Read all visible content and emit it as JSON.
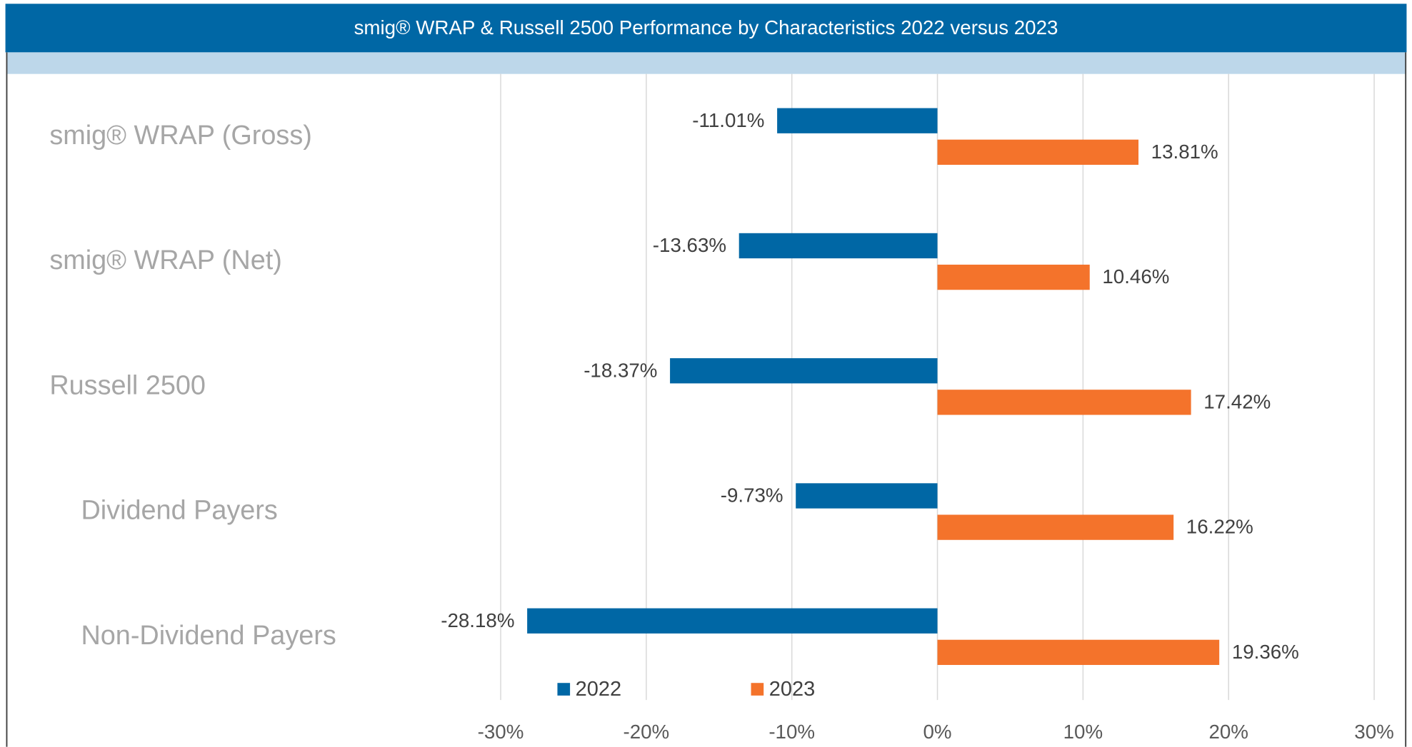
{
  "chart_data": {
    "type": "bar",
    "orientation": "horizontal",
    "title": "smig® WRAP & Russell 2500 Performance by Characteristics 2022 versus 2023",
    "categories": [
      "smig® WRAP (Gross)",
      "smig® WRAP (Net)",
      "Russell 2500",
      "Dividend Payers",
      "Non-Dividend Payers"
    ],
    "series": [
      {
        "name": "2022",
        "color": "#0067a5",
        "values": [
          -11.01,
          -13.63,
          -18.37,
          -9.73,
          -28.18
        ],
        "value_labels": [
          "-11.01%",
          "-13.63%",
          "-18.37%",
          "-9.73%",
          "-28.18%"
        ]
      },
      {
        "name": "2023",
        "color": "#f4732b",
        "values": [
          13.81,
          10.46,
          17.42,
          16.22,
          19.36
        ],
        "value_labels": [
          "13.81%",
          "10.46%",
          "17.42%",
          "16.22%",
          "19.36%"
        ]
      }
    ],
    "xlim": [
      -30,
      30
    ],
    "xticks": [
      {
        "value": -30,
        "label": "-30%"
      },
      {
        "value": -20,
        "label": "-20%"
      },
      {
        "value": -10,
        "label": "-10%"
      },
      {
        "value": 0,
        "label": "0%"
      },
      {
        "value": 10,
        "label": "10%"
      },
      {
        "value": 20,
        "label": "20%"
      },
      {
        "value": 30,
        "label": "30%"
      }
    ],
    "grid": true,
    "legend": "bottom"
  }
}
